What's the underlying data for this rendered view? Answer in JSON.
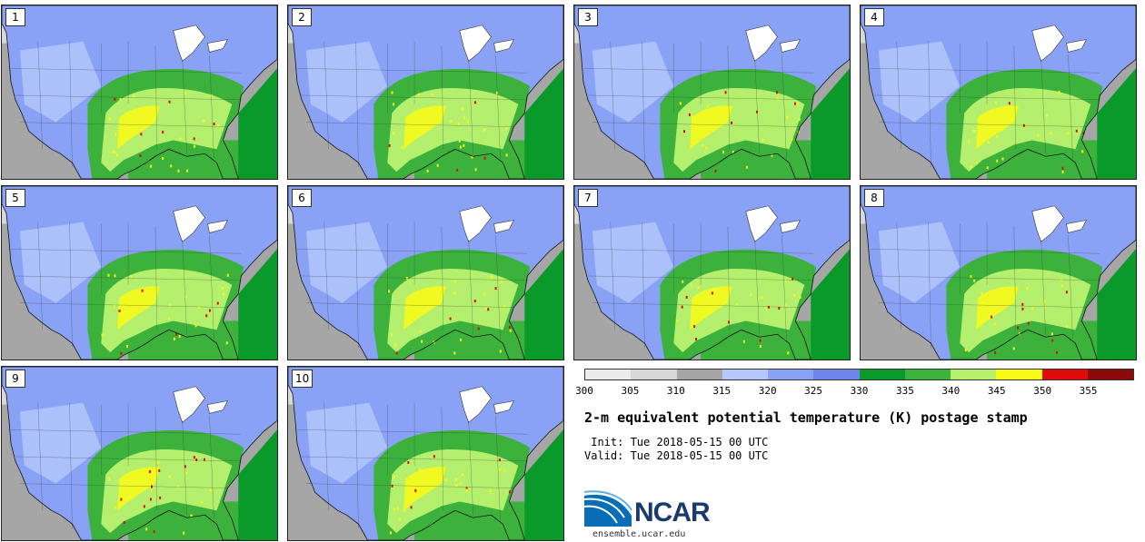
{
  "panels": [
    {
      "number": "1"
    },
    {
      "number": "2"
    },
    {
      "number": "3"
    },
    {
      "number": "4"
    },
    {
      "number": "5"
    },
    {
      "number": "6"
    },
    {
      "number": "7"
    },
    {
      "number": "8"
    },
    {
      "number": "9"
    },
    {
      "number": "10"
    }
  ],
  "colorbar": {
    "colors": [
      "#ececec",
      "#d8d8d8",
      "#a6a6a6",
      "#b4c8fa",
      "#8aa2f5",
      "#6e86ea",
      "#0a9a2a",
      "#3cb23c",
      "#b4f06e",
      "#fafa14",
      "#e10a0a",
      "#8c0a0a"
    ],
    "ticks": [
      "300",
      "305",
      "310",
      "315",
      "320",
      "325",
      "330",
      "335",
      "340",
      "345",
      "350",
      "355"
    ]
  },
  "title": "2-m equivalent potential temperature (K) postage stamp",
  "init": " Init: Tue 2018-05-15 00 UTC",
  "valid": "Valid: Tue 2018-05-15 00 UTC",
  "logo_text": "NCAR",
  "website": "ensemble.ucar.edu"
}
